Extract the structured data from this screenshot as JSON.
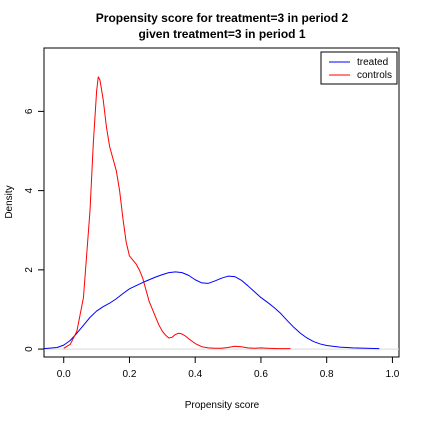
{
  "chart_data": {
    "type": "line",
    "title": [
      "Propensity score for treatment=3 in period 2",
      "given treatment=3 in period 1"
    ],
    "xlabel": "Propensity score",
    "ylabel": "Density",
    "xlim": [
      -0.06,
      1.02
    ],
    "ylim": [
      -0.2,
      7.6
    ],
    "x_ticks": [
      "0.0",
      "0.2",
      "0.4",
      "0.6",
      "0.8",
      "1.0"
    ],
    "y_ticks": [
      "0",
      "2",
      "4",
      "6"
    ],
    "legend_position": "top-right",
    "zero_line": true,
    "series": [
      {
        "name": "treated",
        "color": "#0000FF",
        "points": [
          [
            -0.06,
            0.01
          ],
          [
            -0.02,
            0.04
          ],
          [
            0.0,
            0.1
          ],
          [
            0.02,
            0.22
          ],
          [
            0.04,
            0.4
          ],
          [
            0.06,
            0.6
          ],
          [
            0.08,
            0.8
          ],
          [
            0.1,
            0.96
          ],
          [
            0.12,
            1.07
          ],
          [
            0.14,
            1.16
          ],
          [
            0.16,
            1.27
          ],
          [
            0.18,
            1.4
          ],
          [
            0.2,
            1.52
          ],
          [
            0.22,
            1.6
          ],
          [
            0.24,
            1.68
          ],
          [
            0.26,
            1.75
          ],
          [
            0.28,
            1.82
          ],
          [
            0.3,
            1.88
          ],
          [
            0.32,
            1.93
          ],
          [
            0.34,
            1.95
          ],
          [
            0.36,
            1.93
          ],
          [
            0.38,
            1.86
          ],
          [
            0.4,
            1.75
          ],
          [
            0.42,
            1.67
          ],
          [
            0.44,
            1.66
          ],
          [
            0.46,
            1.72
          ],
          [
            0.48,
            1.79
          ],
          [
            0.5,
            1.84
          ],
          [
            0.52,
            1.83
          ],
          [
            0.54,
            1.74
          ],
          [
            0.56,
            1.6
          ],
          [
            0.58,
            1.45
          ],
          [
            0.6,
            1.3
          ],
          [
            0.62,
            1.18
          ],
          [
            0.64,
            1.05
          ],
          [
            0.66,
            0.9
          ],
          [
            0.68,
            0.72
          ],
          [
            0.7,
            0.55
          ],
          [
            0.72,
            0.4
          ],
          [
            0.74,
            0.28
          ],
          [
            0.76,
            0.19
          ],
          [
            0.78,
            0.13
          ],
          [
            0.8,
            0.09
          ],
          [
            0.84,
            0.05
          ],
          [
            0.88,
            0.03
          ],
          [
            0.92,
            0.02
          ],
          [
            0.96,
            0.01
          ]
        ]
      },
      {
        "name": "controls",
        "color": "#FF0000",
        "points": [
          [
            0.0,
            0.02
          ],
          [
            0.02,
            0.12
          ],
          [
            0.04,
            0.45
          ],
          [
            0.06,
            1.3
          ],
          [
            0.08,
            3.5
          ],
          [
            0.09,
            5.2
          ],
          [
            0.1,
            6.5
          ],
          [
            0.105,
            6.87
          ],
          [
            0.11,
            6.8
          ],
          [
            0.12,
            6.3
          ],
          [
            0.13,
            5.6
          ],
          [
            0.14,
            5.1
          ],
          [
            0.15,
            4.8
          ],
          [
            0.16,
            4.5
          ],
          [
            0.17,
            4.0
          ],
          [
            0.18,
            3.3
          ],
          [
            0.19,
            2.7
          ],
          [
            0.2,
            2.35
          ],
          [
            0.21,
            2.25
          ],
          [
            0.22,
            2.15
          ],
          [
            0.23,
            2.0
          ],
          [
            0.24,
            1.8
          ],
          [
            0.25,
            1.5
          ],
          [
            0.26,
            1.2
          ],
          [
            0.27,
            1.0
          ],
          [
            0.28,
            0.8
          ],
          [
            0.29,
            0.6
          ],
          [
            0.3,
            0.45
          ],
          [
            0.31,
            0.35
          ],
          [
            0.32,
            0.28
          ],
          [
            0.33,
            0.3
          ],
          [
            0.34,
            0.37
          ],
          [
            0.35,
            0.4
          ],
          [
            0.36,
            0.38
          ],
          [
            0.37,
            0.33
          ],
          [
            0.38,
            0.26
          ],
          [
            0.4,
            0.14
          ],
          [
            0.42,
            0.06
          ],
          [
            0.44,
            0.03
          ],
          [
            0.46,
            0.02
          ],
          [
            0.48,
            0.02
          ],
          [
            0.5,
            0.04
          ],
          [
            0.52,
            0.07
          ],
          [
            0.54,
            0.06
          ],
          [
            0.56,
            0.03
          ],
          [
            0.58,
            0.02
          ],
          [
            0.6,
            0.03
          ],
          [
            0.62,
            0.02
          ],
          [
            0.65,
            0.01
          ],
          [
            0.69,
            0.01
          ]
        ]
      }
    ]
  }
}
